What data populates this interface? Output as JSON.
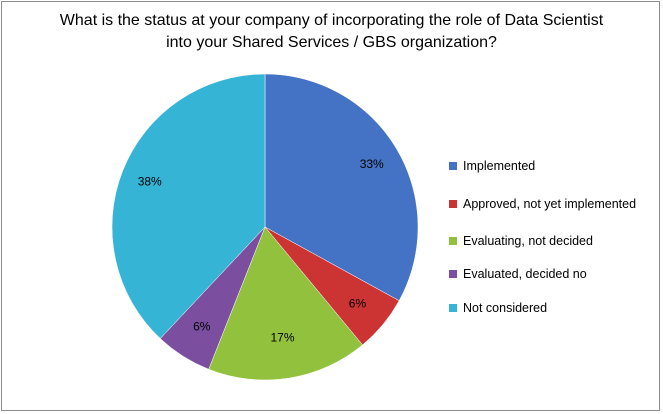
{
  "chart_data": {
    "type": "pie",
    "title_lines": [
      "What is the status at your company of incorporating the role of Data Scientist",
      "into your Shared Services / GBS organization?"
    ],
    "slices": [
      {
        "label": "Implemented",
        "value": 33,
        "value_label": "33%",
        "color": "#4472c4"
      },
      {
        "label": "Approved, not yet implemented",
        "value": 6,
        "value_label": "6%",
        "color": "#cc3333"
      },
      {
        "label": "Evaluating, not decided",
        "value": 17,
        "value_label": "17%",
        "color": "#92c13e"
      },
      {
        "label": "Evaluated, decided no",
        "value": 6,
        "value_label": "6%",
        "color": "#7b4ea0"
      },
      {
        "label": "Not considered",
        "value": 38,
        "value_label": "38%",
        "color": "#35b4d5"
      }
    ],
    "start_angle_deg": 0,
    "direction": "clockwise",
    "legend_position": "right"
  }
}
